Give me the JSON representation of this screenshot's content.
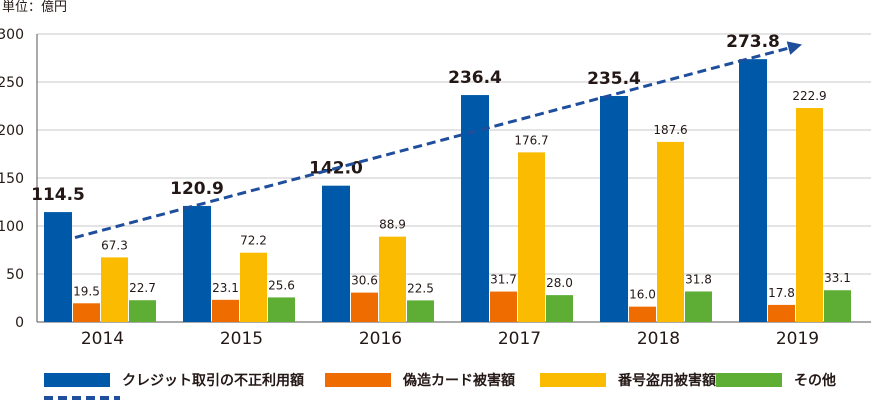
{
  "chart_data": {
    "type": "bar",
    "unit_label": "単位：億円",
    "categories": [
      "2014",
      "2015",
      "2016",
      "2017",
      "2018",
      "2019"
    ],
    "ylim": [
      0,
      300
    ],
    "yticks": [
      0,
      50,
      100,
      150,
      200,
      250,
      300
    ],
    "grid": true,
    "series": [
      {
        "name": "クレジット取引の不正利用額",
        "color": "#0059a8",
        "values": [
          114.5,
          120.9,
          142.0,
          236.4,
          235.4,
          273.8
        ]
      },
      {
        "name": "偽造カード被害額",
        "color": "#ef6c00",
        "values": [
          19.5,
          23.1,
          30.6,
          31.7,
          16.0,
          17.8
        ]
      },
      {
        "name": "番号盗用被害額",
        "color": "#fbbb00",
        "values": [
          67.3,
          72.2,
          88.9,
          176.7,
          187.6,
          222.9
        ]
      },
      {
        "name": "その他",
        "color": "#5eae36",
        "values": [
          22.7,
          25.6,
          22.5,
          28.0,
          31.8,
          33.1
        ]
      }
    ],
    "value_labels": [
      [
        "114.5",
        "120.9",
        "142.0",
        "236.4",
        "235.4",
        "273.8"
      ],
      [
        "19.5",
        "23.1",
        "30.6",
        "31.7",
        "16.0",
        "17.8"
      ],
      [
        "67.3",
        "72.2",
        "88.9",
        "176.7",
        "187.6",
        "222.9"
      ],
      [
        "22.7",
        "25.6",
        "22.5",
        "28.0",
        "31.8",
        "33.1"
      ]
    ],
    "trend": {
      "style": "dashed-arrow",
      "color": "#1f4e9c",
      "from_category": "2014",
      "to_category": "2019"
    },
    "legend_position": "bottom"
  }
}
